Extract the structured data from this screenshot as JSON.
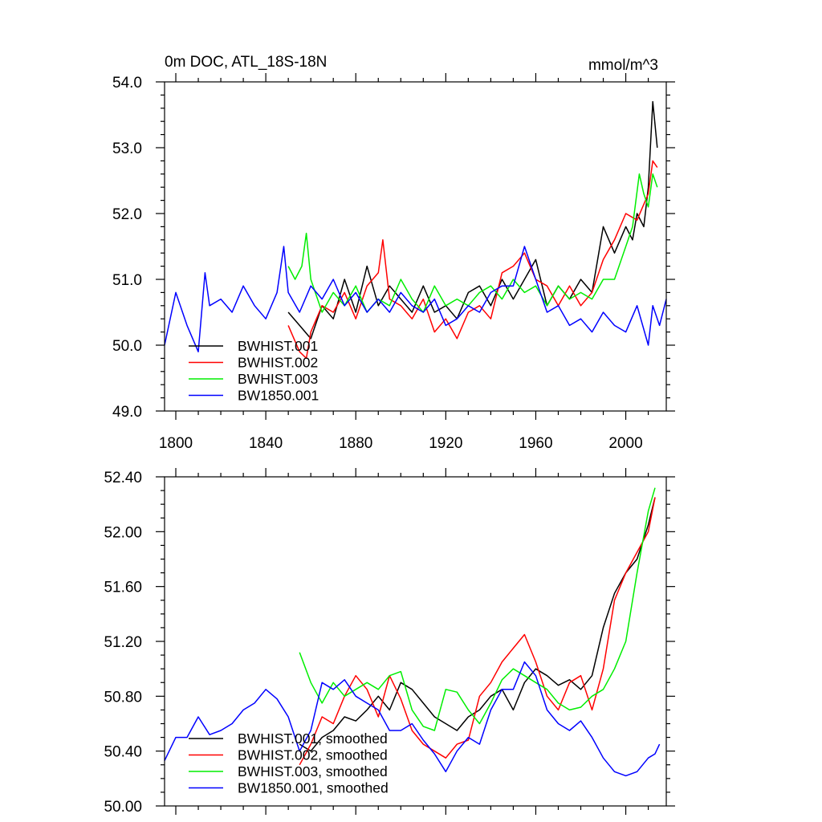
{
  "chart_data": [
    {
      "type": "line",
      "title": "0m DOC, ATL_18S-18N",
      "units": "mmol/m^3",
      "xlabel": "",
      "ylabel": "",
      "xlim": [
        1795,
        2018
      ],
      "ylim": [
        49.0,
        54.0
      ],
      "xticks": [
        1800,
        1840,
        1880,
        1920,
        1960,
        2000
      ],
      "xtick_labels": [
        "1800",
        "1840",
        "1880",
        "1920",
        "1960",
        "2000"
      ],
      "yticks": [
        49.0,
        50.0,
        51.0,
        52.0,
        53.0,
        54.0
      ],
      "ytick_labels": [
        "49.0",
        "50.0",
        "51.0",
        "52.0",
        "53.0",
        "54.0"
      ],
      "legend_position": "bottom-left",
      "series": [
        {
          "name": "BWHIST.001",
          "color": "#000000",
          "x": [
            1850,
            1855,
            1860,
            1865,
            1870,
            1875,
            1880,
            1885,
            1890,
            1895,
            1900,
            1905,
            1910,
            1915,
            1920,
            1925,
            1930,
            1935,
            1940,
            1945,
            1950,
            1955,
            1960,
            1965,
            1970,
            1975,
            1980,
            1985,
            1988,
            1990,
            1995,
            2000,
            2003,
            2005,
            2008,
            2010,
            2012,
            2014
          ],
          "values": [
            50.5,
            50.3,
            50.1,
            50.6,
            50.4,
            51.0,
            50.5,
            51.2,
            50.6,
            50.9,
            50.7,
            50.5,
            50.9,
            50.5,
            50.6,
            50.4,
            50.8,
            50.9,
            50.6,
            51.0,
            50.7,
            51.0,
            51.3,
            50.6,
            50.9,
            50.7,
            51.0,
            50.8,
            51.4,
            51.8,
            51.4,
            51.8,
            51.6,
            52.0,
            51.8,
            52.4,
            53.7,
            53.0
          ]
        },
        {
          "name": "BWHIST.002",
          "color": "#ff0000",
          "x": [
            1850,
            1855,
            1858,
            1860,
            1865,
            1870,
            1875,
            1880,
            1885,
            1890,
            1892,
            1895,
            1900,
            1905,
            1910,
            1915,
            1920,
            1925,
            1930,
            1935,
            1940,
            1945,
            1950,
            1955,
            1960,
            1965,
            1970,
            1975,
            1980,
            1985,
            1990,
            1995,
            2000,
            2005,
            2010,
            2012,
            2014
          ],
          "values": [
            50.3,
            49.9,
            49.8,
            50.2,
            50.6,
            50.5,
            50.8,
            50.4,
            50.9,
            51.1,
            51.6,
            50.7,
            50.6,
            50.4,
            50.7,
            50.2,
            50.4,
            50.1,
            50.5,
            50.6,
            50.4,
            51.1,
            51.2,
            51.4,
            51.0,
            50.9,
            50.6,
            50.9,
            50.6,
            50.8,
            51.3,
            51.6,
            52.0,
            51.9,
            52.3,
            52.8,
            52.7
          ]
        },
        {
          "name": "BWHIST.003",
          "color": "#00ee00",
          "x": [
            1850,
            1853,
            1856,
            1858,
            1860,
            1865,
            1870,
            1875,
            1880,
            1885,
            1890,
            1895,
            1900,
            1905,
            1910,
            1915,
            1920,
            1925,
            1930,
            1935,
            1940,
            1945,
            1950,
            1955,
            1960,
            1965,
            1970,
            1975,
            1980,
            1985,
            1990,
            1995,
            2000,
            2003,
            2006,
            2008,
            2010,
            2012,
            2014
          ],
          "values": [
            51.2,
            51.0,
            51.2,
            51.7,
            51.0,
            50.5,
            50.8,
            50.6,
            50.9,
            50.5,
            50.7,
            50.6,
            51.0,
            50.7,
            50.5,
            50.9,
            50.6,
            50.7,
            50.6,
            50.8,
            50.9,
            50.7,
            51.0,
            50.8,
            50.9,
            50.6,
            50.9,
            50.7,
            50.8,
            50.7,
            51.0,
            51.0,
            51.5,
            51.8,
            52.6,
            52.3,
            52.1,
            52.6,
            52.4
          ]
        },
        {
          "name": "BW1850.001",
          "color": "#0000ff",
          "x": [
            1795,
            1800,
            1805,
            1810,
            1813,
            1815,
            1820,
            1825,
            1830,
            1835,
            1840,
            1845,
            1848,
            1850,
            1855,
            1860,
            1865,
            1870,
            1875,
            1880,
            1885,
            1890,
            1895,
            1900,
            1905,
            1910,
            1915,
            1920,
            1925,
            1930,
            1935,
            1940,
            1945,
            1950,
            1955,
            1960,
            1965,
            1970,
            1975,
            1980,
            1985,
            1990,
            1995,
            2000,
            2005,
            2010,
            2012,
            2015,
            2018
          ],
          "values": [
            50.0,
            50.8,
            50.3,
            49.9,
            51.1,
            50.6,
            50.7,
            50.5,
            50.9,
            50.6,
            50.4,
            50.8,
            51.5,
            50.8,
            50.5,
            50.9,
            50.7,
            51.0,
            50.6,
            50.8,
            50.5,
            50.7,
            50.5,
            50.8,
            50.6,
            50.5,
            50.7,
            50.3,
            50.4,
            50.6,
            50.5,
            50.8,
            50.9,
            50.9,
            51.5,
            51.0,
            50.5,
            50.6,
            50.3,
            50.4,
            50.2,
            50.5,
            50.3,
            50.2,
            50.6,
            50.0,
            50.6,
            50.3,
            50.7
          ]
        }
      ]
    },
    {
      "type": "line",
      "title": "",
      "xlim": [
        1795,
        2018
      ],
      "ylim": [
        50.0,
        52.4
      ],
      "xticks": [
        1800,
        1840,
        1880,
        1920,
        1960,
        2000
      ],
      "yticks": [
        50.0,
        50.4,
        50.8,
        51.2,
        51.6,
        52.0,
        52.4
      ],
      "ytick_labels": [
        "50.00",
        "50.40",
        "50.80",
        "51.20",
        "51.60",
        "52.00",
        "52.40"
      ],
      "legend_position": "bottom-left",
      "series": [
        {
          "name": "BWHIST.001, smoothed",
          "color": "#000000",
          "x": [
            1855,
            1860,
            1865,
            1870,
            1875,
            1880,
            1885,
            1890,
            1895,
            1900,
            1905,
            1910,
            1915,
            1920,
            1925,
            1930,
            1935,
            1940,
            1945,
            1950,
            1955,
            1960,
            1965,
            1970,
            1975,
            1980,
            1985,
            1990,
            1995,
            2000,
            2005,
            2010,
            2013
          ],
          "values": [
            50.45,
            50.4,
            50.5,
            50.55,
            50.65,
            50.62,
            50.7,
            50.8,
            50.7,
            50.9,
            50.85,
            50.75,
            50.65,
            50.6,
            50.55,
            50.65,
            50.7,
            50.8,
            50.85,
            50.7,
            50.9,
            51.0,
            50.95,
            50.88,
            50.92,
            50.85,
            50.95,
            51.3,
            51.55,
            51.7,
            51.8,
            52.05,
            52.25
          ]
        },
        {
          "name": "BWHIST.002, smoothed",
          "color": "#ff0000",
          "x": [
            1855,
            1860,
            1865,
            1870,
            1875,
            1880,
            1885,
            1890,
            1895,
            1900,
            1905,
            1910,
            1915,
            1920,
            1925,
            1930,
            1935,
            1940,
            1945,
            1950,
            1955,
            1960,
            1965,
            1970,
            1975,
            1980,
            1985,
            1990,
            1995,
            2000,
            2005,
            2010,
            2013
          ],
          "values": [
            50.3,
            50.45,
            50.65,
            50.6,
            50.8,
            50.95,
            50.85,
            50.65,
            50.95,
            50.78,
            50.55,
            50.45,
            50.4,
            50.35,
            50.45,
            50.48,
            50.8,
            50.9,
            51.05,
            51.15,
            51.25,
            51.05,
            50.8,
            50.7,
            50.9,
            50.95,
            50.7,
            51.0,
            51.5,
            51.7,
            51.85,
            52.0,
            52.25
          ]
        },
        {
          "name": "BWHIST.003, smoothed",
          "color": "#00ee00",
          "x": [
            1855,
            1860,
            1865,
            1870,
            1875,
            1880,
            1885,
            1890,
            1895,
            1900,
            1905,
            1910,
            1915,
            1920,
            1925,
            1930,
            1935,
            1940,
            1945,
            1950,
            1955,
            1960,
            1965,
            1970,
            1975,
            1980,
            1985,
            1990,
            1995,
            2000,
            2005,
            2010,
            2013
          ],
          "values": [
            51.12,
            50.9,
            50.75,
            50.9,
            50.8,
            50.85,
            50.9,
            50.85,
            50.95,
            50.98,
            50.7,
            50.58,
            50.55,
            50.85,
            50.83,
            50.7,
            50.6,
            50.75,
            50.92,
            51.0,
            50.95,
            50.9,
            50.85,
            50.75,
            50.7,
            50.72,
            50.8,
            50.85,
            51.0,
            51.2,
            51.7,
            52.15,
            52.32
          ]
        },
        {
          "name": "BW1850.001, smoothed",
          "color": "#0000ff",
          "x": [
            1795,
            1800,
            1805,
            1810,
            1815,
            1820,
            1825,
            1830,
            1835,
            1840,
            1845,
            1850,
            1855,
            1860,
            1865,
            1870,
            1875,
            1880,
            1885,
            1890,
            1895,
            1900,
            1905,
            1910,
            1915,
            1920,
            1925,
            1930,
            1935,
            1940,
            1945,
            1950,
            1955,
            1960,
            1965,
            1970,
            1975,
            1980,
            1985,
            1990,
            1995,
            2000,
            2005,
            2010,
            2013,
            2015
          ],
          "values": [
            50.33,
            50.5,
            50.5,
            50.65,
            50.52,
            50.55,
            50.6,
            50.7,
            50.75,
            50.85,
            50.78,
            50.65,
            50.4,
            50.55,
            50.9,
            50.85,
            50.92,
            50.8,
            50.75,
            50.7,
            50.55,
            50.55,
            50.6,
            50.48,
            50.38,
            50.25,
            50.4,
            50.5,
            50.45,
            50.7,
            50.85,
            50.85,
            51.05,
            50.95,
            50.7,
            50.6,
            50.55,
            50.62,
            50.5,
            50.35,
            50.25,
            50.22,
            50.25,
            50.35,
            50.38,
            50.45
          ]
        }
      ]
    }
  ]
}
